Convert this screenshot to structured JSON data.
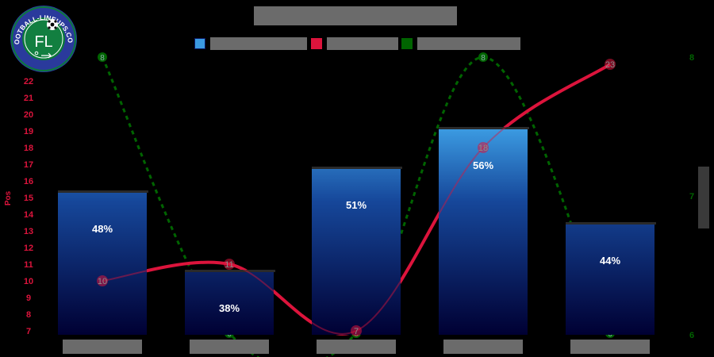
{
  "header": {
    "title": "",
    "logo_text": "FOOTBALL-LINEUPS.COM",
    "logo_monogram": "FL"
  },
  "legend": [
    {
      "label": "",
      "color": "#3b9ae1",
      "type": "bar"
    },
    {
      "label": "",
      "color": "#dc143c",
      "type": "line"
    },
    {
      "label": "",
      "color": "#006400",
      "type": "dashed-line"
    }
  ],
  "colors": {
    "bar_top": "#3b9ae1",
    "bar_bottom": "#000033",
    "position_line": "#dc143c",
    "green_line": "#006400",
    "background": "#000000",
    "text_placeholder": "#6b6b6b"
  },
  "chart_data": {
    "type": "bar",
    "title": "",
    "categories": [
      "",
      "",
      "",
      "",
      ""
    ],
    "series": [
      {
        "name": "",
        "type": "bar",
        "axis": "percent",
        "values": [
          48,
          38,
          51,
          56,
          44
        ],
        "labels": [
          "48%",
          "38%",
          "51%",
          "56%",
          "44%"
        ]
      },
      {
        "name": "",
        "type": "line",
        "axis": "left",
        "values": [
          10,
          11,
          7,
          18,
          23
        ]
      },
      {
        "name": "",
        "type": "dashed-line",
        "axis": "right",
        "values": [
          8,
          6,
          6,
          8,
          6
        ]
      }
    ],
    "left_axis": {
      "label": "Pos",
      "ticks": [
        22,
        21,
        20,
        19,
        18,
        17,
        16,
        15,
        14,
        13,
        12,
        11,
        10,
        9,
        8,
        7
      ],
      "color": "#dc143c"
    },
    "right_axis": {
      "label": "",
      "ticks": [
        8,
        7,
        6
      ],
      "color": "#006400"
    },
    "xlabel": "",
    "grid": false,
    "legend_position": "top"
  }
}
